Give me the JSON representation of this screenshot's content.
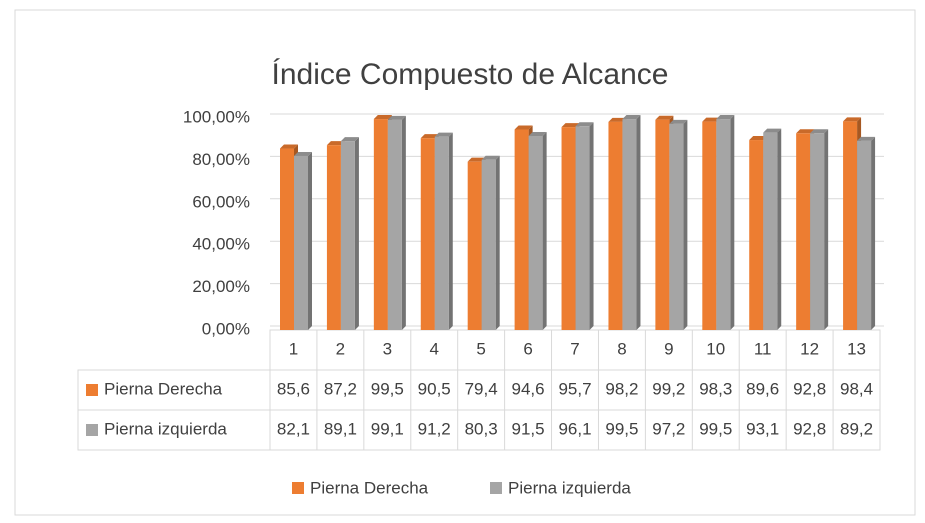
{
  "chart_data": {
    "type": "bar",
    "title": "Índice Compuesto de Alcance",
    "categories": [
      "1",
      "2",
      "3",
      "4",
      "5",
      "6",
      "7",
      "8",
      "9",
      "10",
      "11",
      "12",
      "13"
    ],
    "series": [
      {
        "name": "Pierna Derecha",
        "color": "#ed7d31",
        "values": [
          85.6,
          87.2,
          99.5,
          90.5,
          79.4,
          94.6,
          95.7,
          98.2,
          99.2,
          98.3,
          89.6,
          92.8,
          98.4
        ],
        "value_labels": [
          "85,6",
          "87,2",
          "99,5",
          "90,5",
          "79,4",
          "94,6",
          "95,7",
          "98,2",
          "99,2",
          "98,3",
          "89,6",
          "92,8",
          "98,4"
        ]
      },
      {
        "name": "Pierna izquierda",
        "color": "#a5a5a5",
        "values": [
          82.1,
          89.1,
          99.1,
          91.2,
          80.3,
          91.5,
          96.1,
          99.5,
          97.2,
          99.5,
          93.1,
          92.8,
          89.2
        ],
        "value_labels": [
          "82,1",
          "89,1",
          "99,1",
          "91,2",
          "80,3",
          "91,5",
          "96,1",
          "99,5",
          "97,2",
          "99,5",
          "93,1",
          "92,8",
          "89,2"
        ]
      }
    ],
    "ylim": [
      0,
      100
    ],
    "yticks": [
      {
        "value": 0,
        "label": "0,00%"
      },
      {
        "value": 20,
        "label": "20,00%"
      },
      {
        "value": 40,
        "label": "40,00%"
      },
      {
        "value": 60,
        "label": "60,00%"
      },
      {
        "value": 80,
        "label": "80,00%"
      },
      {
        "value": 100,
        "label": "100,00%"
      }
    ],
    "grid": true,
    "legend": "bottom"
  }
}
